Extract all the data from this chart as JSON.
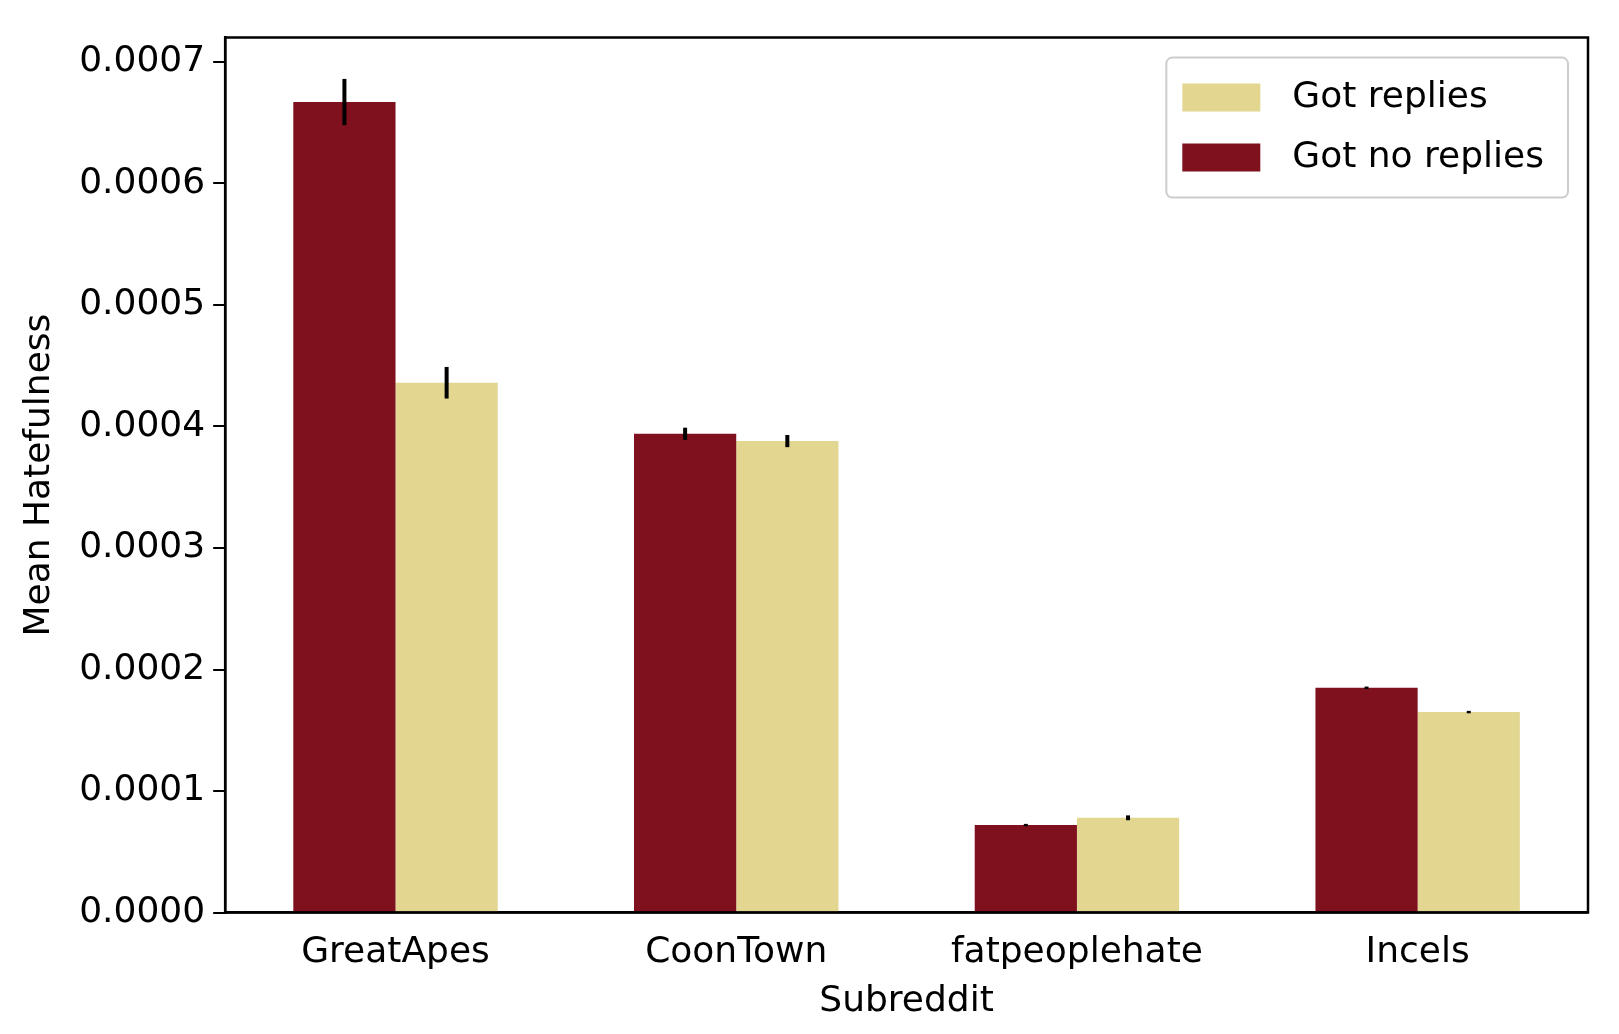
{
  "chart_data": {
    "type": "bar",
    "xlabel": "Subreddit",
    "ylabel": "Mean Hatefulness",
    "categories": [
      "GreatApes",
      "CoonTown",
      "fatpeoplehate",
      "Incels"
    ],
    "series": [
      {
        "name": "Got no replies",
        "color": "#7f101d",
        "values": [
          0.000667,
          0.000394,
          7.2e-05,
          0.000185
        ],
        "errors": [
          1.9e-05,
          5e-06,
          1e-06,
          1e-06
        ]
      },
      {
        "name": "Got replies",
        "color": "#e2d690",
        "values": [
          0.000436,
          0.000388,
          7.8e-05,
          0.000165
        ],
        "errors": [
          1.3e-05,
          5e-06,
          2e-06,
          1e-06
        ]
      }
    ],
    "ylim": [
      0,
      0.00072
    ],
    "yticks": [
      {
        "value": 0,
        "label": "0.0000"
      },
      {
        "value": 0.0001,
        "label": "0.0001"
      },
      {
        "value": 0.0002,
        "label": "0.0002"
      },
      {
        "value": 0.0003,
        "label": "0.0003"
      },
      {
        "value": 0.0004,
        "label": "0.0004"
      },
      {
        "value": 0.0005,
        "label": "0.0005"
      },
      {
        "value": 0.0006,
        "label": "0.0006"
      },
      {
        "value": 0.0007,
        "label": "0.0007"
      }
    ],
    "grid": false,
    "legend": "top right"
  }
}
